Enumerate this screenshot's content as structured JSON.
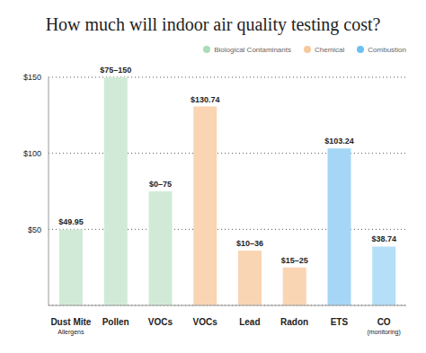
{
  "chart_data": {
    "type": "bar",
    "title": "How much will indoor air quality testing cost?",
    "categories": [
      "Dust Mite\nAllergens",
      "Pollen",
      "VOCs",
      "VOCs",
      "Lead",
      "Radon",
      "ETS",
      "CO\n(monitoring)"
    ],
    "values": [
      49.95,
      150,
      75,
      130.74,
      36,
      25,
      103.24,
      38.74
    ],
    "value_labels": [
      "$49.95",
      "$75–150",
      "$0–75",
      "$130.74",
      "$10–36",
      "$15–25",
      "$103.24",
      "$38.74"
    ],
    "data_labels": true,
    "colors": [
      "#d1ead7",
      "#d1ead7",
      "#d1ead7",
      "#f9d5b3",
      "#f9d5b3",
      "#f9d5b3",
      "#a6d6f5",
      "#b5def7"
    ],
    "legend": "top",
    "legend_entries": [
      {
        "name": "Biological Contaminants",
        "color": "#a9dcb8"
      },
      {
        "name": "Chemical",
        "color": "#f6c89c"
      },
      {
        "name": "Combustion",
        "color": "#6cc0f0"
      }
    ],
    "ylim": [
      0,
      150
    ],
    "yticks": [
      {
        "value": 50,
        "label": "$50"
      },
      {
        "value": 100,
        "label": "$100"
      },
      {
        "value": 150,
        "label": "$150"
      }
    ],
    "grid": true
  }
}
